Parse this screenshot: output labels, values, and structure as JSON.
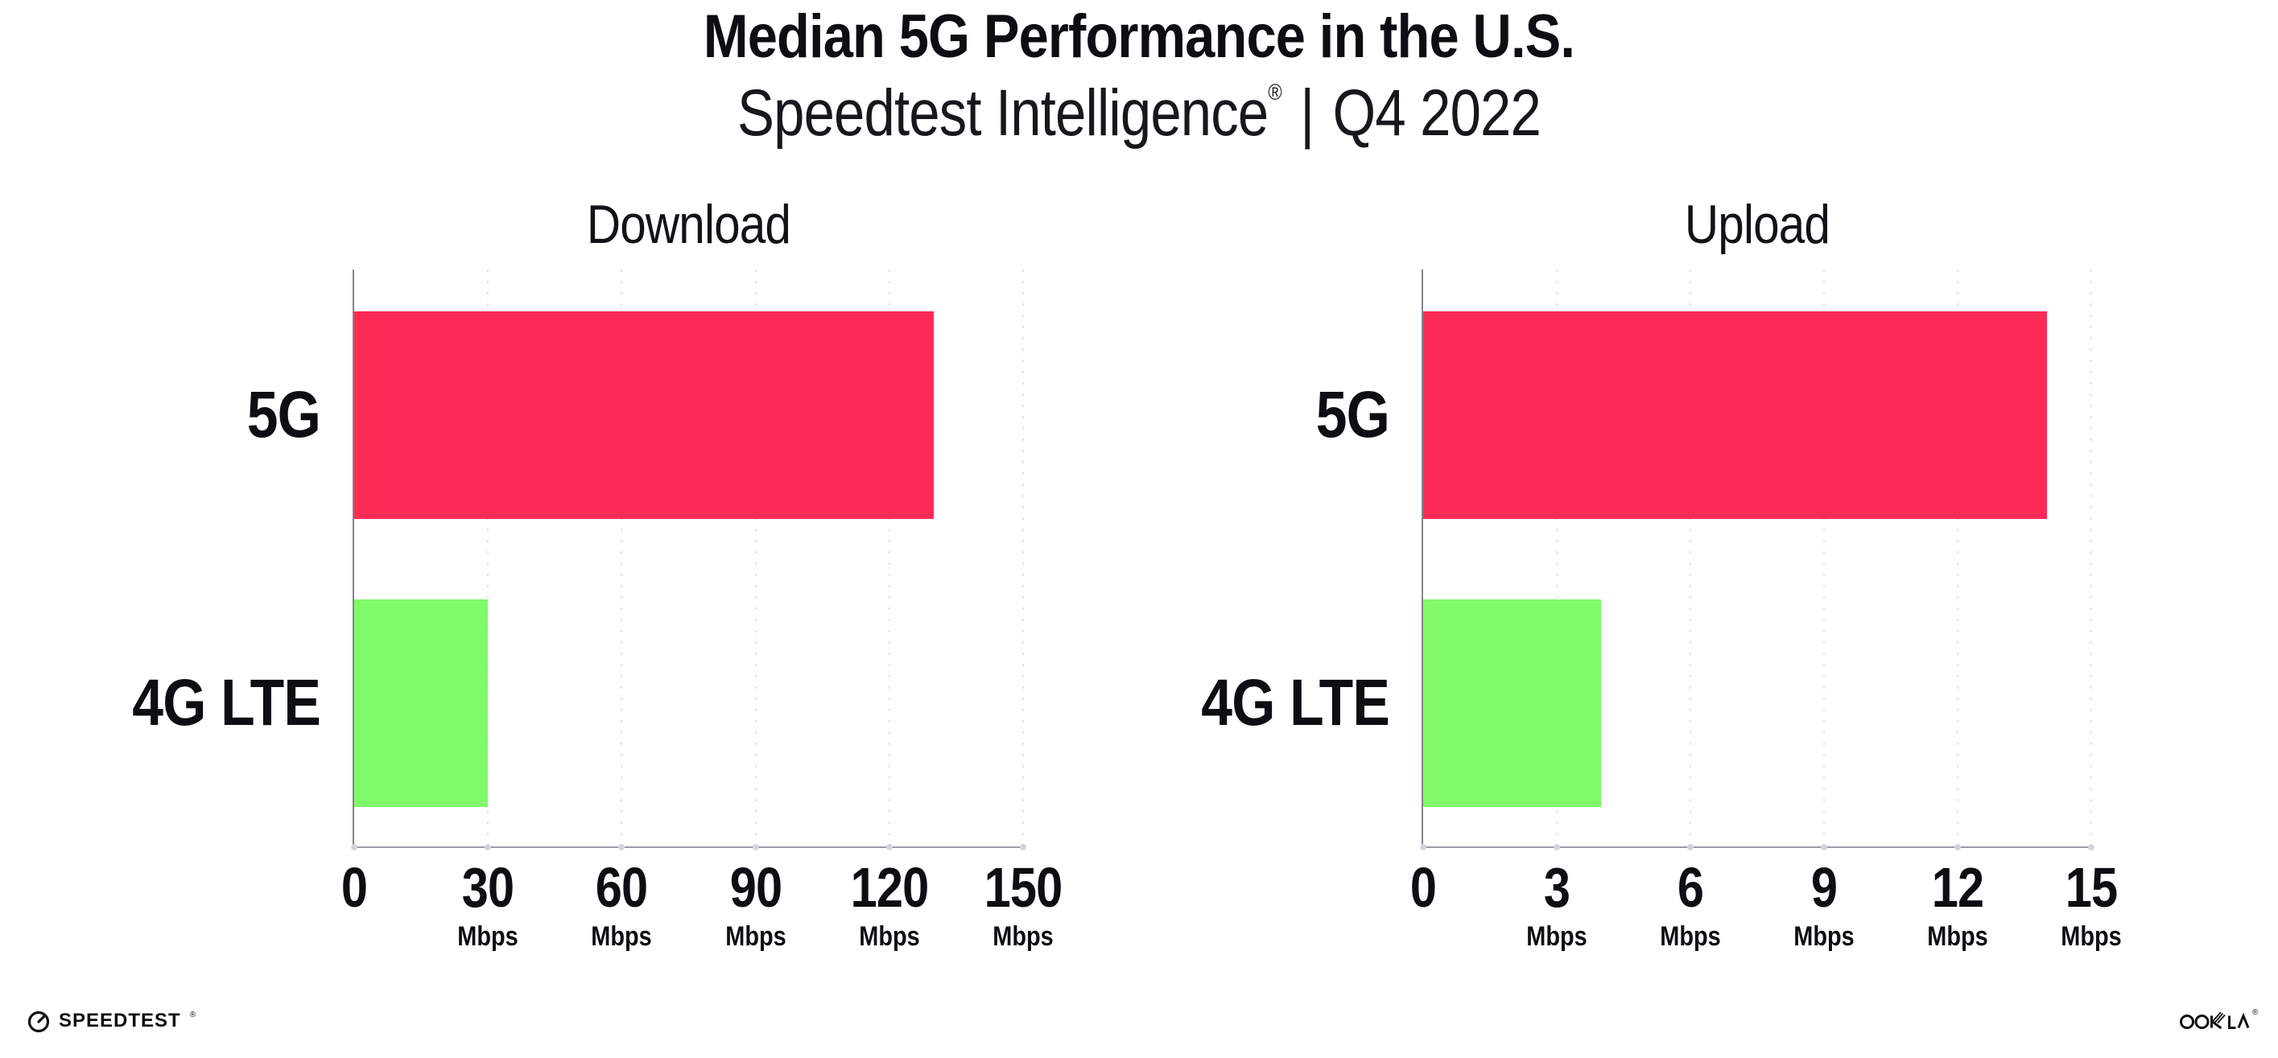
{
  "header": {
    "title": "Median 5G Performance in the U.S.",
    "subtitle_brand": "Speedtest Intelligence",
    "subtitle_reg": "®",
    "subtitle_separator": "|",
    "subtitle_period": "Q4 2022"
  },
  "footer": {
    "speedtest_label": "SPEEDTEST",
    "speedtest_reg": "®",
    "ookla_label": "OOKLA",
    "ookla_reg": "®"
  },
  "colors": {
    "bar_5g": "#FC2B55",
    "bar_4g_lte": "#80FA69",
    "gridline": "#E2E2EC",
    "y_axis": "#84848E",
    "x_axis": "#9C9CA6",
    "tick_dot": "#D4D4DE",
    "text": "#0E0E12"
  },
  "chart_data": [
    {
      "type": "bar",
      "title": "Download",
      "orientation": "horizontal",
      "categories": [
        "5G",
        "4G LTE"
      ],
      "values": [
        130,
        30
      ],
      "unit": "Mbps",
      "xlim": [
        0,
        150
      ],
      "xticks": [
        0,
        30,
        60,
        90,
        120,
        150
      ],
      "bar_colors": [
        "#FC2B55",
        "#80FA69"
      ],
      "grid": "vertical-dotted",
      "legend": "none"
    },
    {
      "type": "bar",
      "title": "Upload",
      "orientation": "horizontal",
      "categories": [
        "5G",
        "4G LTE"
      ],
      "values": [
        14,
        4
      ],
      "unit": "Mbps",
      "xlim": [
        0,
        15
      ],
      "xticks": [
        0,
        3,
        6,
        9,
        12,
        15
      ],
      "bar_colors": [
        "#FC2B55",
        "#80FA69"
      ],
      "grid": "vertical-dotted",
      "legend": "none"
    }
  ]
}
